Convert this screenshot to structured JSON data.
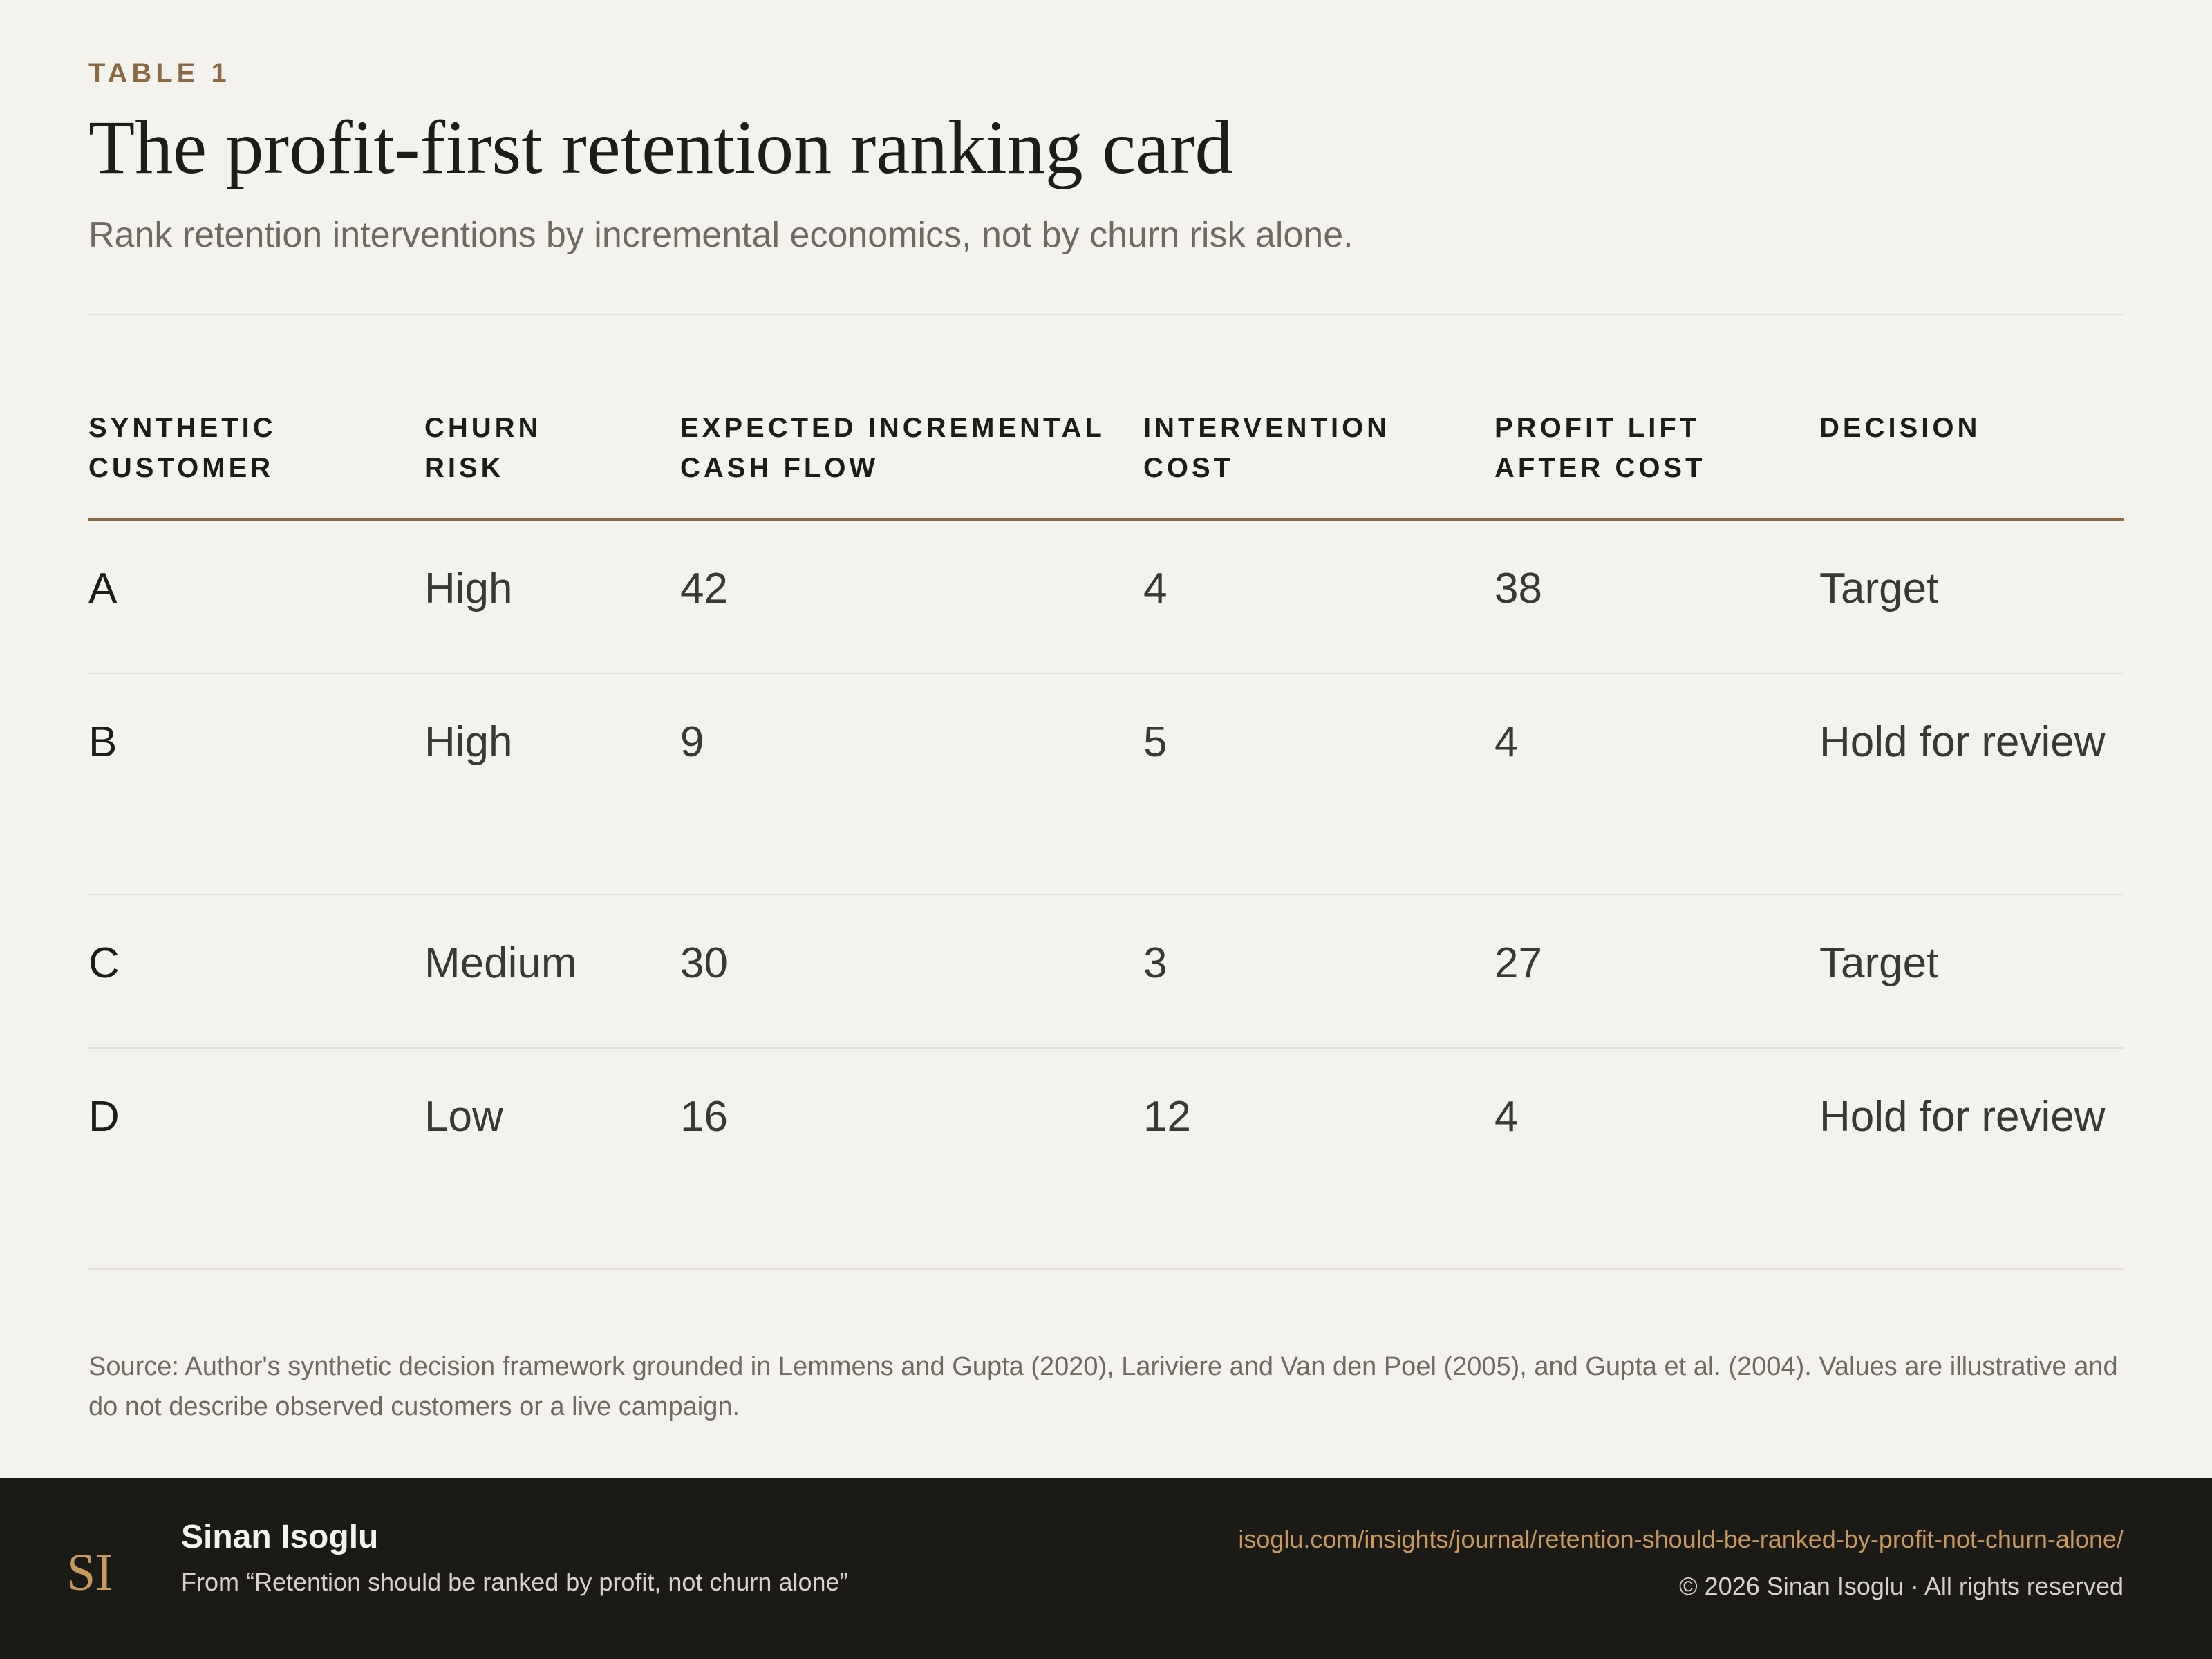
{
  "header": {
    "kicker": "TABLE 1",
    "title": "The profit-first retention ranking card",
    "subtitle": "Rank retention interventions by incremental economics, not by churn risk alone."
  },
  "table": {
    "columns": [
      [
        "SYNTHETIC",
        "CUSTOMER"
      ],
      [
        "CHURN",
        "RISK"
      ],
      [
        "EXPECTED INCREMENTAL",
        "CASH FLOW"
      ],
      [
        "INTERVENTION",
        "COST"
      ],
      [
        "PROFIT LIFT",
        "AFTER COST"
      ],
      [
        "DECISION",
        ""
      ]
    ],
    "rows": [
      {
        "customer": "A",
        "churn_risk": "High",
        "cash_flow": "42",
        "cost": "4",
        "profit_lift": "38",
        "decision": "Target"
      },
      {
        "customer": "B",
        "churn_risk": "High",
        "cash_flow": "9",
        "cost": "5",
        "profit_lift": "4",
        "decision": "Hold for review"
      },
      {
        "customer": "C",
        "churn_risk": "Medium",
        "cash_flow": "30",
        "cost": "3",
        "profit_lift": "27",
        "decision": "Target"
      },
      {
        "customer": "D",
        "churn_risk": "Low",
        "cash_flow": "16",
        "cost": "12",
        "profit_lift": "4",
        "decision": "Hold for review"
      }
    ]
  },
  "source": "Source: Author's synthetic decision framework grounded in Lemmens and Gupta (2020), Lariviere and Van den Poel (2005), and Gupta et al. (2004). Values are illustrative and do not describe observed customers or a live campaign.",
  "footer": {
    "logo_text": "SI",
    "author": "Sinan Isoglu",
    "from": "From “Retention should be ranked by profit, not churn alone”",
    "url": "isoglu.com/insights/journal/retention-should-be-ranked-by-profit-not-churn-alone/",
    "copyright": "© 2026 Sinan Isoglu · All rights reserved"
  },
  "colors": {
    "accent": "#8a6a44",
    "link": "#c9985c",
    "background": "#f3f2ed",
    "footer_bg": "#1c1a16"
  }
}
